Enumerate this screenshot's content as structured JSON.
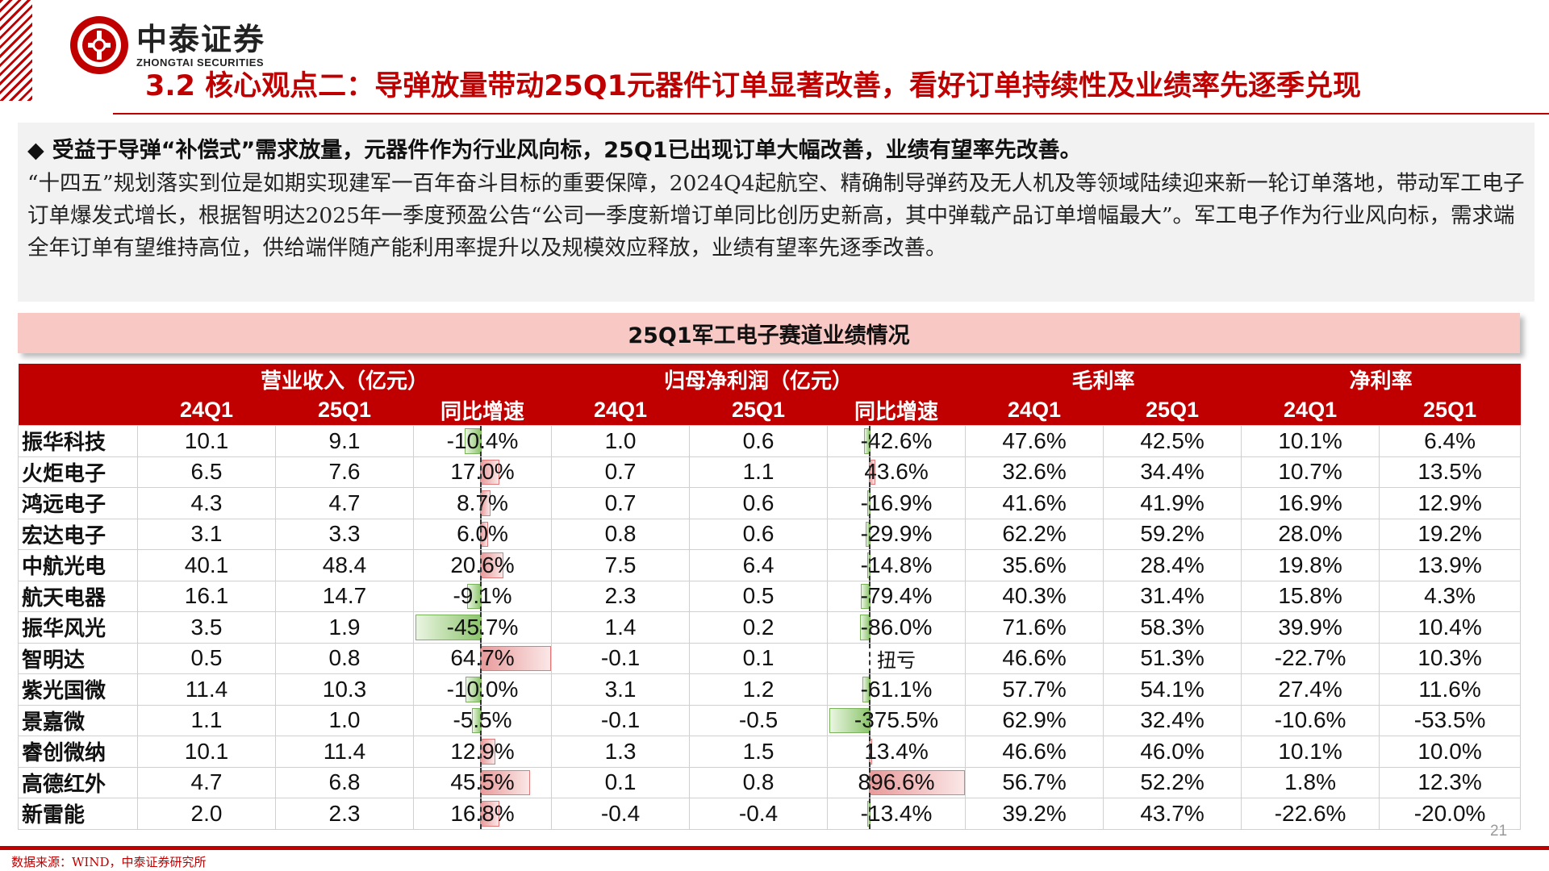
{
  "brand": {
    "name_cn": "中泰证券",
    "name_en": "ZHONGTAI SECURITIES",
    "accent": "#c00000"
  },
  "title": "3.2 核心观点二：导弹放量带动25Q1元器件订单显著改善，看好订单持续性及业绩率先逐季兑现",
  "summary": {
    "headline": "受益于导弹“补偿式”需求放量，元器件作为行业风向标，25Q1已出现订单大幅改善，业绩有望率先改善。",
    "body": "“十四五”规划落实到位是如期实现建军一百年奋斗目标的重要保障，2024Q4起航空、精确制导弹药及无人机及等领域陆续迎来新一轮订单落地，带动军工电子订单爆发式增长，根据智明达2025年一季度预盈公告“公司一季度新增订单同比创历史新高，其中弹载产品订单增幅最大”。军工电子作为行业风向标，需求端全年订单有望维持高位，供给端伴随产能利用率提升以及规模效应释放，业绩有望率先逐季改善。"
  },
  "table": {
    "title": "25Q1军工电子赛道业绩情况",
    "groups": [
      "营业收入（亿元）",
      "归母净利润（亿元）",
      "毛利率",
      "净利率"
    ],
    "subheaders": [
      "24Q1",
      "25Q1",
      "同比增速",
      "24Q1",
      "25Q1",
      "同比增速",
      "24Q1",
      "25Q1",
      "24Q1",
      "25Q1"
    ],
    "rows": [
      {
        "name": "振华科技",
        "rev24": "10.1",
        "rev25": "9.1",
        "rev_yoy": "-10.4%",
        "rev_yoy_v": -10.4,
        "np24": "1.0",
        "np25": "0.6",
        "np_yoy": "-42.6%",
        "np_yoy_v": -42.6,
        "gm24": "47.6%",
        "gm25": "42.5%",
        "nm24": "10.1%",
        "nm25": "6.4%"
      },
      {
        "name": "火炬电子",
        "rev24": "6.5",
        "rev25": "7.6",
        "rev_yoy": "17.0%",
        "rev_yoy_v": 17.0,
        "np24": "0.7",
        "np25": "1.1",
        "np_yoy": "43.6%",
        "np_yoy_v": 43.6,
        "gm24": "32.6%",
        "gm25": "34.4%",
        "nm24": "10.7%",
        "nm25": "13.5%"
      },
      {
        "name": "鸿远电子",
        "rev24": "4.3",
        "rev25": "4.7",
        "rev_yoy": "8.7%",
        "rev_yoy_v": 8.7,
        "np24": "0.7",
        "np25": "0.6",
        "np_yoy": "-16.9%",
        "np_yoy_v": -16.9,
        "gm24": "41.6%",
        "gm25": "41.9%",
        "nm24": "16.9%",
        "nm25": "12.9%"
      },
      {
        "name": "宏达电子",
        "rev24": "3.1",
        "rev25": "3.3",
        "rev_yoy": "6.0%",
        "rev_yoy_v": 6.0,
        "np24": "0.8",
        "np25": "0.6",
        "np_yoy": "-29.9%",
        "np_yoy_v": -29.9,
        "gm24": "62.2%",
        "gm25": "59.2%",
        "nm24": "28.0%",
        "nm25": "19.2%"
      },
      {
        "name": "中航光电",
        "rev24": "40.1",
        "rev25": "48.4",
        "rev_yoy": "20.6%",
        "rev_yoy_v": 20.6,
        "np24": "7.5",
        "np25": "6.4",
        "np_yoy": "-14.8%",
        "np_yoy_v": -14.8,
        "gm24": "35.6%",
        "gm25": "28.4%",
        "nm24": "19.8%",
        "nm25": "13.9%"
      },
      {
        "name": "航天电器",
        "rev24": "16.1",
        "rev25": "14.7",
        "rev_yoy": "-9.1%",
        "rev_yoy_v": -9.1,
        "np24": "2.3",
        "np25": "0.5",
        "np_yoy": "-79.4%",
        "np_yoy_v": -79.4,
        "gm24": "40.3%",
        "gm25": "31.4%",
        "nm24": "15.8%",
        "nm25": "4.3%"
      },
      {
        "name": "振华风光",
        "rev24": "3.5",
        "rev25": "1.9",
        "rev_yoy": "-45.7%",
        "rev_yoy_v": -45.7,
        "np24": "1.4",
        "np25": "0.2",
        "np_yoy": "-86.0%",
        "np_yoy_v": -86.0,
        "gm24": "71.6%",
        "gm25": "58.3%",
        "nm24": "39.9%",
        "nm25": "10.4%"
      },
      {
        "name": "智明达",
        "rev24": "0.5",
        "rev25": "0.8",
        "rev_yoy": "64.7%",
        "rev_yoy_v": 64.7,
        "np24": "-0.1",
        "np25": "0.1",
        "np_yoy": "扭亏",
        "np_yoy_v": null,
        "gm24": "46.6%",
        "gm25": "51.3%",
        "nm24": "-22.7%",
        "nm25": "10.3%"
      },
      {
        "name": "紫光国微",
        "rev24": "11.4",
        "rev25": "10.3",
        "rev_yoy": "-10.0%",
        "rev_yoy_v": -10.0,
        "np24": "3.1",
        "np25": "1.2",
        "np_yoy": "-61.1%",
        "np_yoy_v": -61.1,
        "gm24": "57.7%",
        "gm25": "54.1%",
        "nm24": "27.4%",
        "nm25": "11.6%"
      },
      {
        "name": "景嘉微",
        "rev24": "1.1",
        "rev25": "1.0",
        "rev_yoy": "-5.5%",
        "rev_yoy_v": -5.5,
        "np24": "-0.1",
        "np25": "-0.5",
        "np_yoy": "-375.5%",
        "np_yoy_v": -375.5,
        "gm24": "62.9%",
        "gm25": "32.4%",
        "nm24": "-10.6%",
        "nm25": "-53.5%"
      },
      {
        "name": "睿创微纳",
        "rev24": "10.1",
        "rev25": "11.4",
        "rev_yoy": "12.9%",
        "rev_yoy_v": 12.9,
        "np24": "1.3",
        "np25": "1.5",
        "np_yoy": "13.4%",
        "np_yoy_v": 13.4,
        "gm24": "46.6%",
        "gm25": "46.0%",
        "nm24": "10.1%",
        "nm25": "10.0%"
      },
      {
        "name": "高德红外",
        "rev24": "4.7",
        "rev25": "6.8",
        "rev_yoy": "45.5%",
        "rev_yoy_v": 45.5,
        "np24": "0.1",
        "np25": "0.8",
        "np_yoy": "896.6%",
        "np_yoy_v": 896.6,
        "gm24": "56.7%",
        "gm25": "52.2%",
        "nm24": "1.8%",
        "nm25": "12.3%"
      },
      {
        "name": "新雷能",
        "rev24": "2.0",
        "rev25": "2.3",
        "rev_yoy": "16.8%",
        "rev_yoy_v": 16.8,
        "np24": "-0.4",
        "np25": "-0.4",
        "np_yoy": "-13.4%",
        "np_yoy_v": -13.4,
        "gm24": "39.2%",
        "gm25": "43.7%",
        "nm24": "-22.6%",
        "nm25": "-20.0%"
      }
    ]
  },
  "footer": {
    "source": "数据来源：WIND，中泰证券研究所",
    "page_number": "21"
  }
}
